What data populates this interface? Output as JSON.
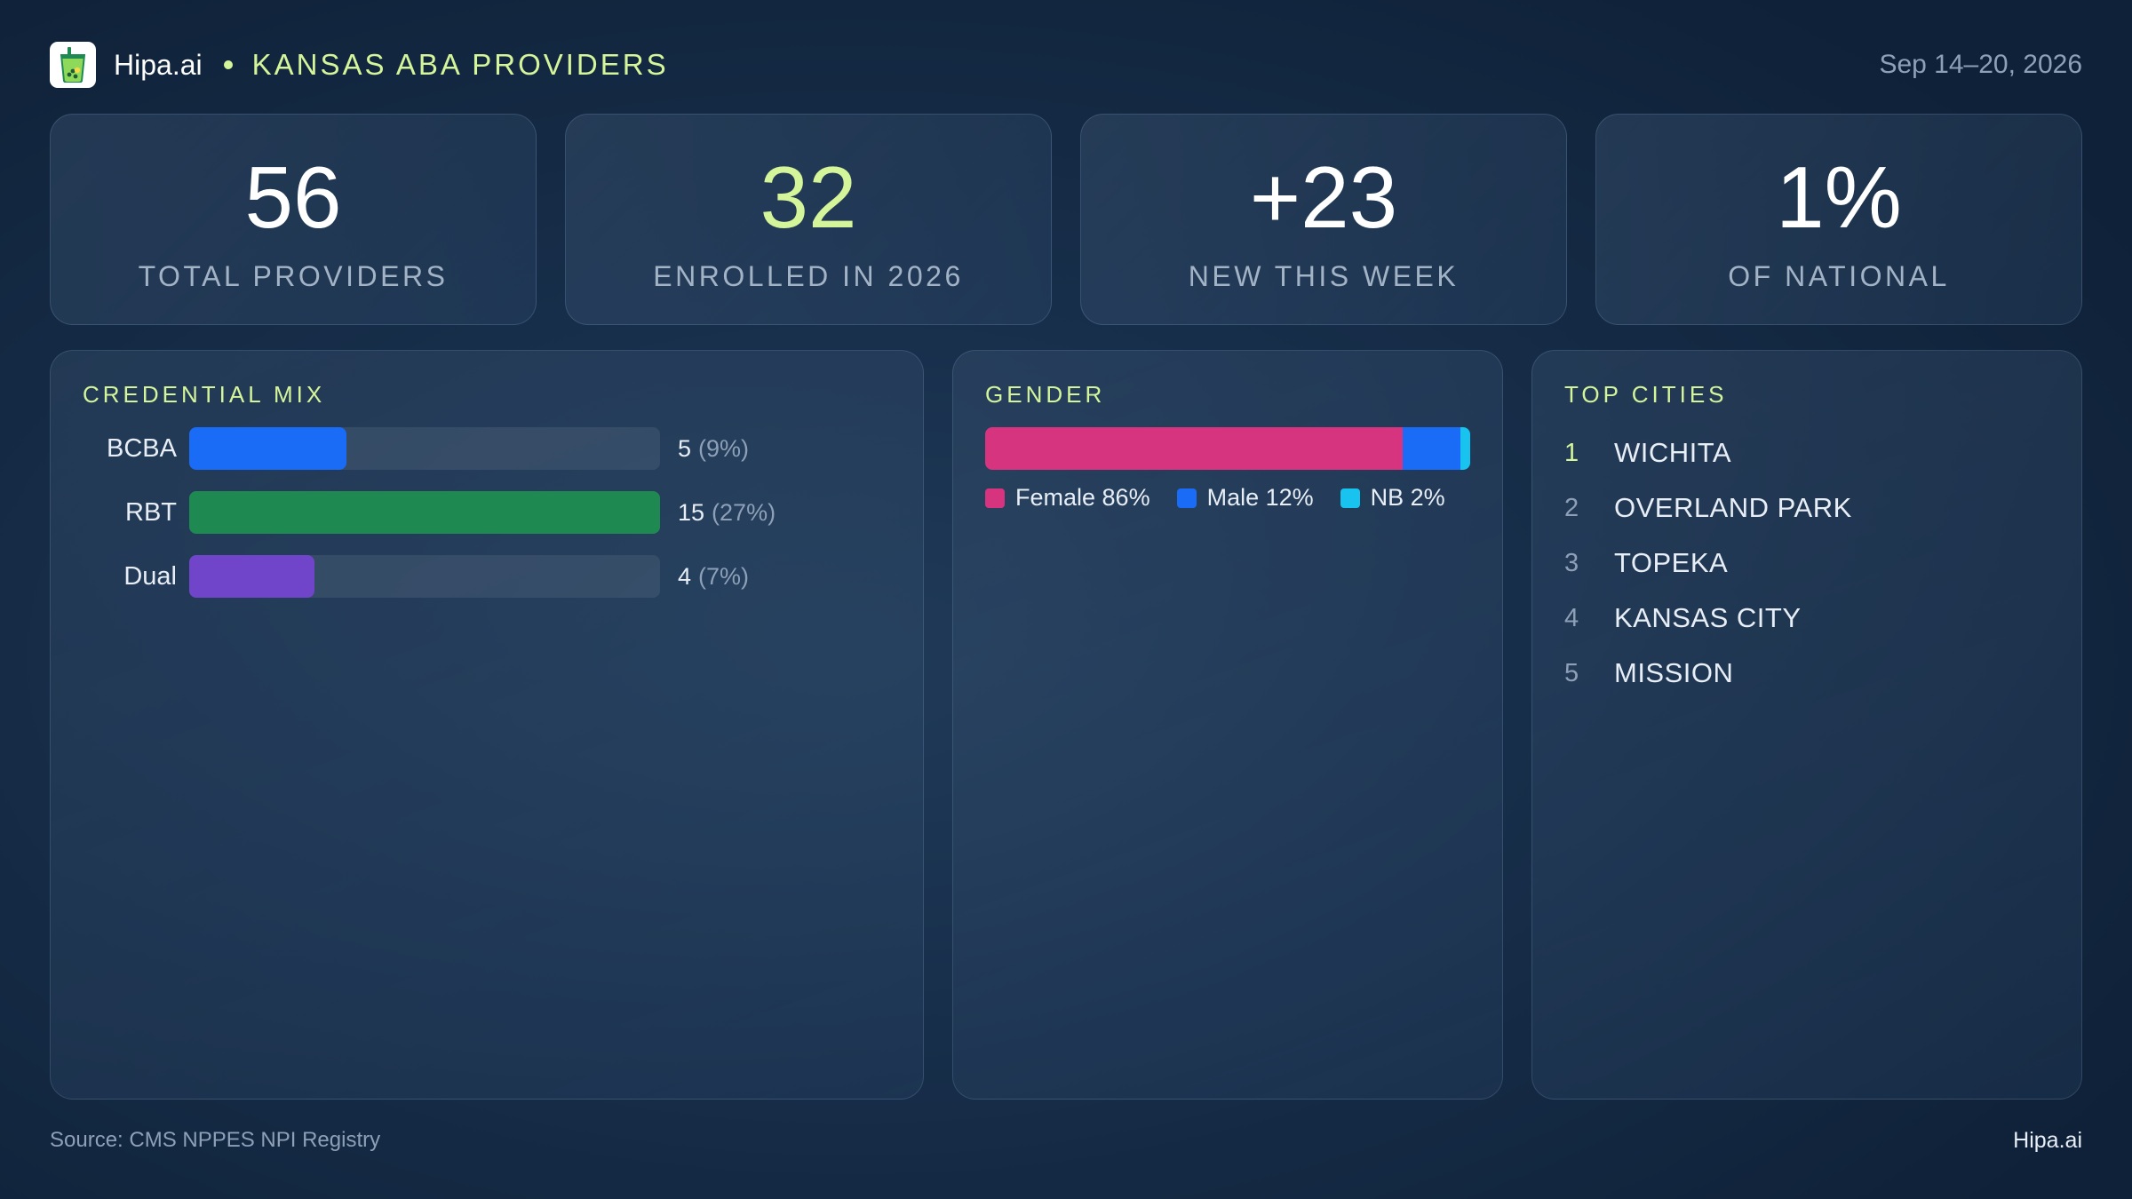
{
  "header": {
    "brand": "Hipa.ai",
    "title": "KANSAS ABA PROVIDERS",
    "date_range": "Sep 14–20, 2026",
    "logo_icon": "bubble-tea-cup-icon"
  },
  "colors": {
    "accent": "#d4f59a",
    "bcba": "#1a6bf5",
    "rbt": "#1e8a52",
    "dual": "#7145c9",
    "female": "#d6347e",
    "male": "#1a6bf5",
    "nb": "#18c3f0"
  },
  "kpis": [
    {
      "value": "56",
      "label": "TOTAL PROVIDERS"
    },
    {
      "value": "32",
      "label": "ENROLLED IN 2026"
    },
    {
      "value": "+23",
      "label": "NEW THIS WEEK"
    },
    {
      "value": "1%",
      "label": "OF NATIONAL"
    }
  ],
  "chart_data": [
    {
      "type": "bar",
      "title": "CREDENTIAL MIX",
      "orientation": "horizontal",
      "categories": [
        "BCBA",
        "RBT",
        "Dual"
      ],
      "values": [
        5,
        15,
        4
      ],
      "percent_labels": [
        "(9%)",
        "(27%)",
        "(7%)"
      ],
      "value_labels": [
        "5",
        "15",
        "4"
      ],
      "xlim": [
        0,
        15
      ],
      "colors": [
        "#1a6bf5",
        "#1e8a52",
        "#7145c9"
      ]
    },
    {
      "type": "bar",
      "stacked": true,
      "orientation": "horizontal",
      "title": "GENDER",
      "series": [
        {
          "name": "Female",
          "value": 86,
          "label": "86%",
          "color": "#d6347e"
        },
        {
          "name": "Male",
          "value": 12,
          "label": "12%",
          "color": "#1a6bf5"
        },
        {
          "name": "NB",
          "value": 2,
          "label": "2%",
          "color": "#18c3f0"
        }
      ]
    },
    {
      "type": "table",
      "title": "TOP CITIES",
      "columns": [
        "rank",
        "city"
      ],
      "rows": [
        {
          "rank": "1",
          "city": "WICHITA"
        },
        {
          "rank": "2",
          "city": "OVERLAND PARK"
        },
        {
          "rank": "3",
          "city": "TOPEKA"
        },
        {
          "rank": "4",
          "city": "KANSAS CITY"
        },
        {
          "rank": "5",
          "city": "MISSION"
        }
      ]
    }
  ],
  "footer": {
    "source": "Source: CMS NPPES NPI Registry",
    "brand": "Hipa.ai"
  }
}
